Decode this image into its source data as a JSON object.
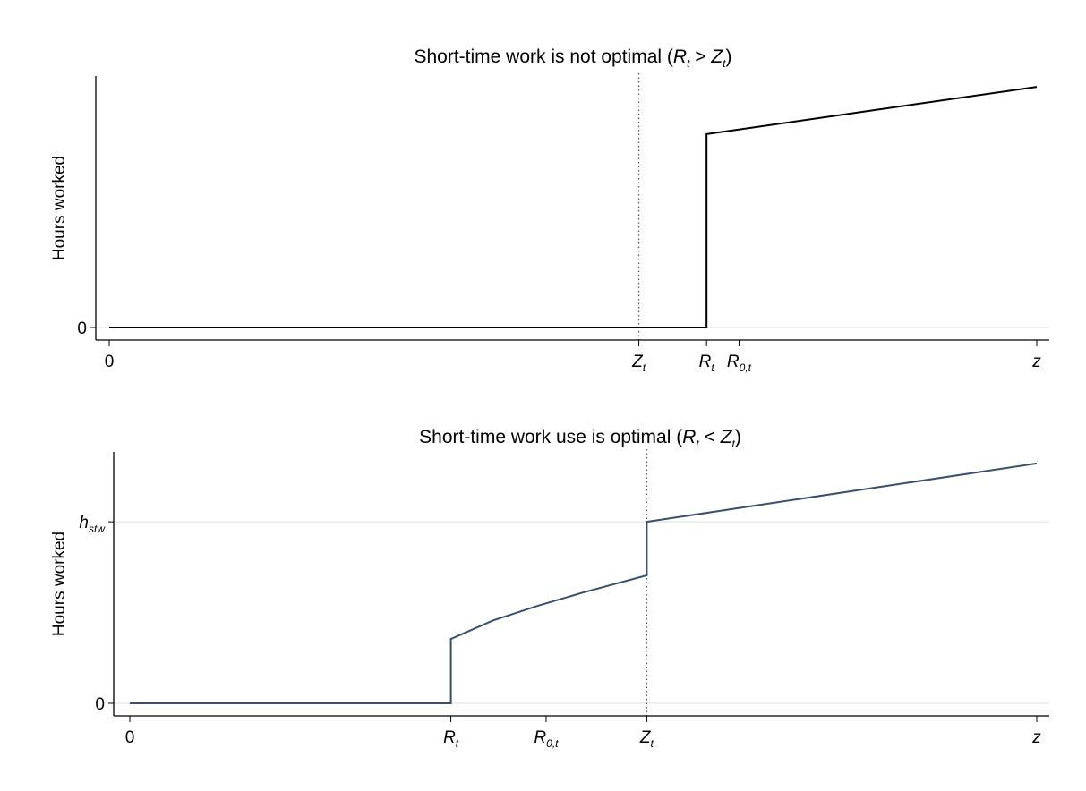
{
  "chart_data": [
    {
      "type": "line",
      "title": [
        "Short-time work is not optimal (",
        "R",
        "t",
        " > ",
        "Z",
        "t",
        ")"
      ],
      "ylabel": "Hours worked",
      "xlim": [
        0,
        100
      ],
      "ylim": [
        0,
        100
      ],
      "xticks": [
        0,
        {
          "value": 57.1,
          "label": "Z",
          "sub": "t",
          "dotted": true
        },
        {
          "value": 64.4,
          "label": "R",
          "sub": "t"
        },
        {
          "value": 67.9,
          "label": "R",
          "sub": "0,t"
        },
        {
          "value": 100,
          "label": "z"
        }
      ],
      "yticks": [
        0
      ],
      "grid": true,
      "series": [
        {
          "color": "#000000",
          "x": [
            0,
            64.4,
            64.4,
            100
          ],
          "values": [
            0,
            0,
            76.9,
            95.7
          ]
        }
      ]
    },
    {
      "type": "line",
      "title": [
        "Short-time work use is optimal (",
        "R",
        "t",
        " < ",
        "Z",
        "t",
        ")"
      ],
      "ylabel": "Hours worked",
      "xlim": [
        0,
        100
      ],
      "ylim": [
        0,
        100
      ],
      "xticks": [
        0,
        {
          "value": 35.4,
          "label": "R",
          "sub": "t"
        },
        {
          "value": 45.9,
          "label": "R",
          "sub": "0,t"
        },
        {
          "value": 57.0,
          "label": "Z",
          "sub": "t",
          "dotted": true
        },
        {
          "value": 100,
          "label": "z"
        }
      ],
      "yticks": [
        0,
        {
          "value": 72.2,
          "label": "h",
          "sub": "stw"
        }
      ],
      "grid": true,
      "series": [
        {
          "color": "#3b4f6b",
          "x": [
            0,
            35.4,
            35.4,
            40,
            45,
            50,
            57.0,
            57.0,
            100
          ],
          "values": [
            0,
            0,
            25.6,
            32.9,
            38.8,
            44.1,
            50.9,
            72.2,
            95.4
          ]
        }
      ]
    }
  ]
}
